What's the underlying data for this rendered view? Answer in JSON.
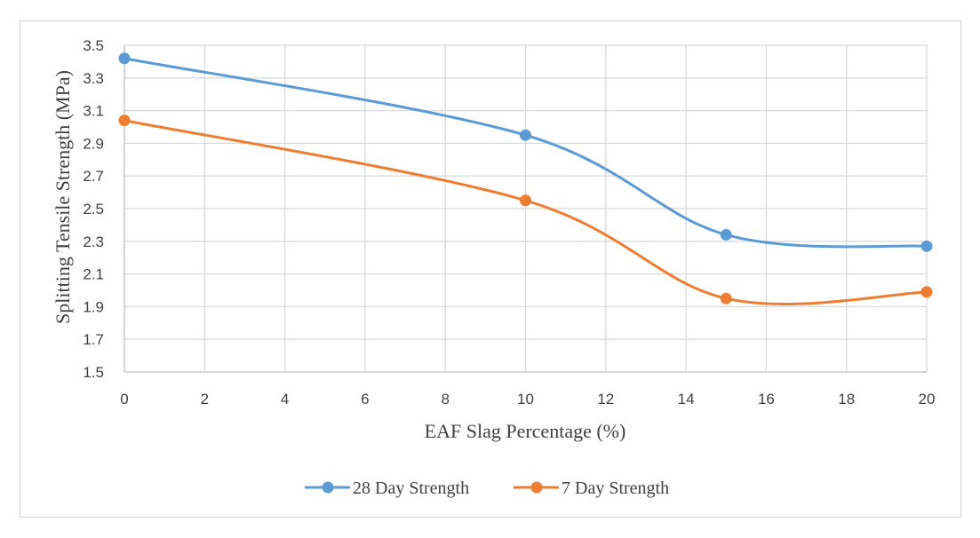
{
  "chart_data": {
    "type": "line",
    "smooth": true,
    "title": "",
    "xlabel": "EAF Slag Percentage (%)",
    "ylabel": "Splitting Tensile Strength (MPa)",
    "xlim": [
      0,
      20
    ],
    "ylim": [
      1.5,
      3.5
    ],
    "xticks": [
      0,
      2,
      4,
      6,
      8,
      10,
      12,
      14,
      16,
      18,
      20
    ],
    "yticks": [
      1.5,
      1.7,
      1.9,
      2.1,
      2.3,
      2.5,
      2.7,
      2.9,
      3.1,
      3.3,
      3.5
    ],
    "grid": true,
    "legend_position": "bottom",
    "x": [
      0,
      10,
      15,
      20
    ],
    "series": [
      {
        "name": "28 Day Strength",
        "color": "#5B9BD5",
        "values": [
          3.42,
          2.95,
          2.34,
          2.27
        ]
      },
      {
        "name": "7 Day Strength",
        "color": "#ED7D31",
        "values": [
          3.04,
          2.55,
          1.95,
          1.99
        ]
      }
    ]
  }
}
